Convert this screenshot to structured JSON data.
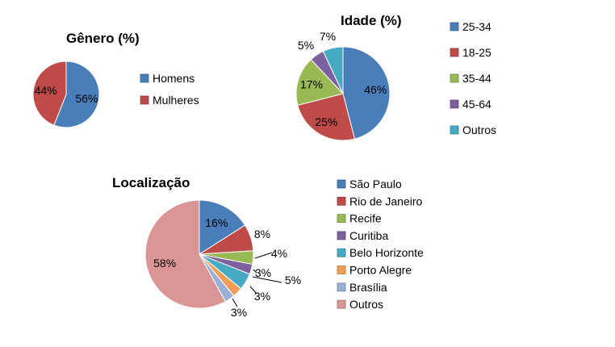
{
  "chart_data": [
    {
      "type": "pie",
      "title": "Gênero (%)",
      "series": [
        {
          "values": [
            56,
            44
          ],
          "labels": [
            "56%",
            "44%"
          ]
        }
      ],
      "categories": [
        "Homens",
        "Mulheres"
      ],
      "colors": [
        "#4A7EBB",
        "#BE4B48"
      ],
      "legend": "right"
    },
    {
      "type": "pie",
      "title": "Idade (%)",
      "series": [
        {
          "values": [
            46,
            25,
            17,
            5,
            7
          ],
          "labels": [
            "46%",
            "25%",
            "17%",
            "5%",
            "7%"
          ]
        }
      ],
      "categories": [
        "25-34",
        "18-25",
        "35-44",
        "45-64",
        "Outros"
      ],
      "colors": [
        "#4A7EBB",
        "#BE4B48",
        "#98B954",
        "#7D60A0",
        "#46AAC5"
      ],
      "legend": "right"
    },
    {
      "type": "pie",
      "title": "Localização",
      "series": [
        {
          "values": [
            16,
            8,
            4,
            3,
            5,
            3,
            3,
            58
          ],
          "labels": [
            "16%",
            "8%",
            "4%",
            "3%",
            "5%",
            "3%",
            "3%",
            "58%"
          ]
        }
      ],
      "categories": [
        "São Paulo",
        "Rio de Janeiro",
        "Recife",
        "Curitiba",
        "Belo Horizonte",
        "Porto Alegre",
        "Brasília",
        "Outros"
      ],
      "colors": [
        "#4A7EBB",
        "#BE4B48",
        "#98B954",
        "#7D60A0",
        "#46AAC5",
        "#F59D56",
        "#9AB0D6",
        "#DA9694"
      ],
      "legend": "right"
    }
  ]
}
